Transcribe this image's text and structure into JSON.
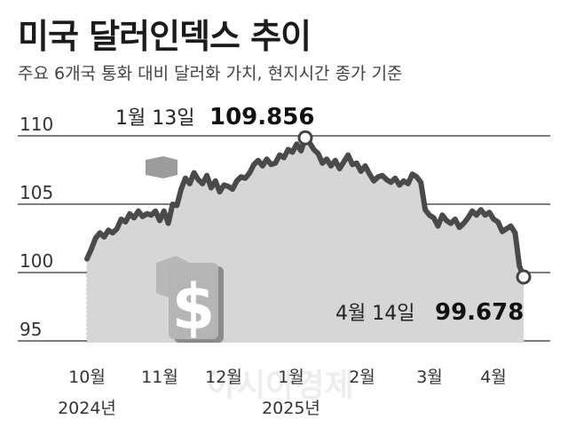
{
  "title": "미국 달러인덱스 추이",
  "subtitle": "주요 6개국 통화 대비 달러화 가치, 현지시간 종가 기준",
  "watermark": "아시아경제",
  "chart_data": {
    "type": "area",
    "title": "미국 달러인덱스 추이",
    "subtitle": "주요 6개국 통화 대비 달러화 가치, 현지시간 종가 기준",
    "y_ticks": [
      95,
      100,
      105,
      110
    ],
    "ylim": [
      94,
      111
    ],
    "x_ticks": [
      {
        "label": "10월",
        "year": "2024년"
      },
      {
        "label": "11월",
        "year": ""
      },
      {
        "label": "12월",
        "year": ""
      },
      {
        "label": "1월",
        "year": "2025년"
      },
      {
        "label": "2월",
        "year": ""
      },
      {
        "label": "3월",
        "year": ""
      },
      {
        "label": "4월",
        "year": ""
      }
    ],
    "series": [
      {
        "values": [
          101.0,
          101.7,
          102.5,
          102.9,
          102.6,
          103.1,
          102.9,
          103.2,
          103.9,
          103.7,
          104.3,
          104.0,
          104.5,
          104.1,
          104.3,
          104.2,
          104.5,
          103.8,
          104.5,
          103.6,
          105.0,
          104.9,
          106.1,
          106.9,
          106.5,
          107.3,
          106.8,
          106.5,
          107.1,
          106.2,
          106.7,
          105.9,
          106.4,
          106.3,
          106.1,
          106.7,
          107.0,
          106.9,
          107.3,
          107.9,
          108.2,
          107.8,
          108.3,
          107.9,
          108.0,
          108.6,
          108.4,
          109.0,
          108.8,
          109.4,
          108.9,
          109.856,
          109.5,
          109.0,
          108.7,
          108.0,
          108.3,
          107.8,
          108.2,
          107.6,
          108.1,
          108.6,
          107.9,
          108.0,
          107.4,
          107.8,
          107.2,
          106.7,
          107.0,
          107.1,
          106.8,
          106.6,
          106.9,
          106.4,
          106.7,
          106.5,
          107.2,
          107.0,
          106.6,
          104.6,
          104.2,
          104.0,
          103.4,
          104.2,
          103.8,
          103.6,
          103.9,
          103.3,
          103.6,
          104.0,
          104.5,
          104.2,
          104.6,
          104.2,
          104.4,
          103.9,
          103.7,
          103.0,
          103.2,
          103.4,
          102.9,
          100.5,
          99.678
        ]
      }
    ],
    "annotations": [
      {
        "date": "1월 13일",
        "value": "109.856"
      },
      {
        "date": "4월 14일",
        "value": "99.678"
      }
    ]
  }
}
